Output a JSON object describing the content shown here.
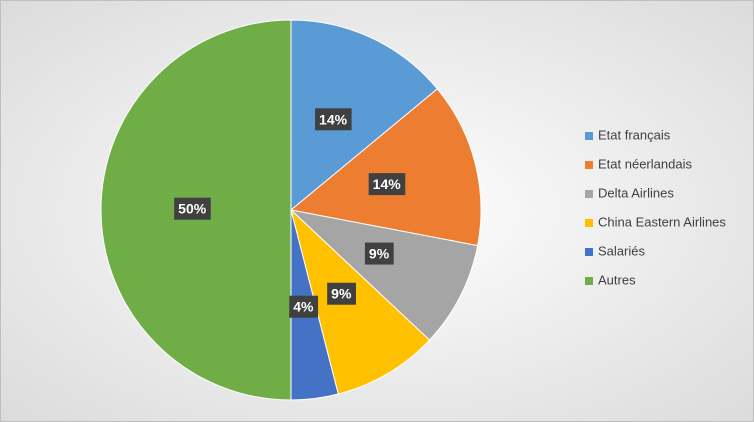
{
  "chart_data": {
    "type": "pie",
    "categories": [
      "Etat français",
      "Etat néerlandais",
      "Delta Airlines",
      "China Eastern Airlines",
      "Salariés",
      "Autres"
    ],
    "values": [
      14,
      14,
      9,
      9,
      4,
      50
    ],
    "value_labels": [
      "14%",
      "14%",
      "9%",
      "9%",
      "4%",
      "50%"
    ],
    "colors": [
      "#5b9bd5",
      "#ed7d31",
      "#a5a5a5",
      "#ffc000",
      "#4472c4",
      "#70ad47"
    ],
    "legend": "right"
  }
}
